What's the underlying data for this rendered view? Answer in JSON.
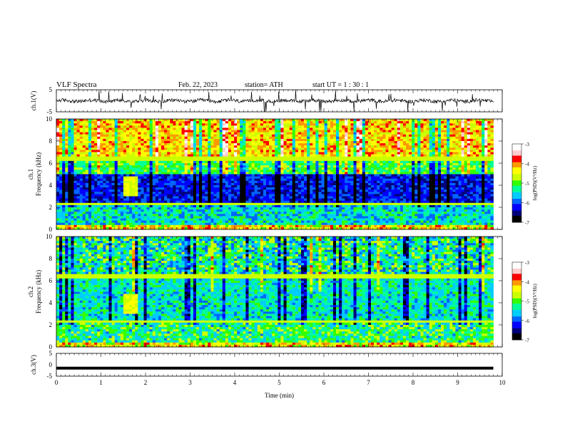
{
  "header": {
    "title": "VLF  Spectra",
    "date": "Feb. 22, 2023",
    "station": "station= ATH",
    "start": "start  UT  =   1  : 30 : 1"
  },
  "chart_data": [
    {
      "type": "line",
      "panel": "ch1-waveform",
      "ylabel": "ch.1(V)",
      "yticks": [
        "5",
        "-5"
      ],
      "ylim": [
        -5,
        5
      ],
      "xlim": [
        0,
        10
      ],
      "note_values": "noisy waveform around 0 V with spikes"
    },
    {
      "type": "heatmap",
      "panel": "ch1-spectrogram",
      "ylabel_top": "ch.1",
      "ylabel": "Frequency  (kHz)",
      "yticks": [
        "0",
        "2",
        "4",
        "6",
        "8",
        "10"
      ],
      "ylim": [
        0,
        10
      ],
      "xlim": [
        0,
        9.8
      ],
      "colorbar": {
        "label": "log(PSD)(V²/Hz)",
        "ticks": [
          "-3",
          "-4",
          "-5",
          "-6",
          "-7"
        ],
        "range": [
          -7,
          -3
        ]
      }
    },
    {
      "type": "heatmap",
      "panel": "ch2-spectrogram",
      "ylabel_top": "ch.2",
      "ylabel": "Frequency  (kHz)",
      "yticks": [
        "0",
        "2",
        "4",
        "6",
        "8",
        "10"
      ],
      "ylim": [
        0,
        10
      ],
      "xlim": [
        0,
        9.8
      ],
      "colorbar": {
        "label": "log(PSD)(V²/Hz)",
        "ticks": [
          "-3",
          "-4",
          "-5",
          "-6",
          "-7"
        ],
        "range": [
          -7,
          -3
        ]
      }
    },
    {
      "type": "line",
      "panel": "ch3-waveform",
      "ylabel": "ch.3(V)",
      "yticks": [
        "5",
        "0",
        "-5"
      ],
      "ylim": [
        -5,
        5
      ],
      "xlim": [
        0,
        10
      ],
      "level": -1.5
    }
  ],
  "xaxis": {
    "label": "Time  (min)",
    "ticks": [
      "0",
      "1",
      "2",
      "3",
      "4",
      "5",
      "6",
      "7",
      "8",
      "9",
      "10"
    ]
  },
  "colors": {
    "scale": [
      "#000000",
      "#00007a",
      "#0000ff",
      "#0066ff",
      "#00ccff",
      "#00ff99",
      "#33ff00",
      "#ccff00",
      "#ffff00",
      "#ff9900",
      "#ff0000",
      "#ffcccc",
      "#ffffff"
    ]
  }
}
